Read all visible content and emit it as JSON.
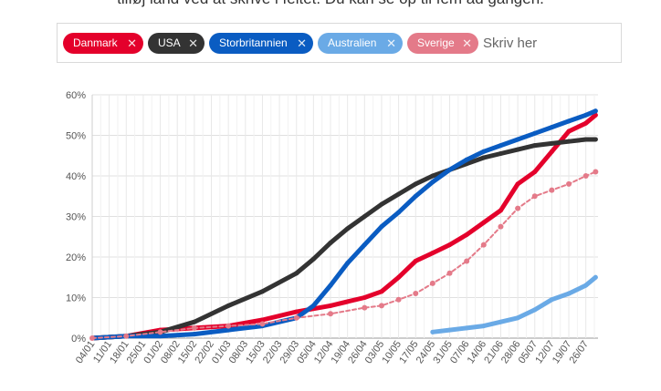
{
  "intro_text": "tilføj land ved at skrive i feltet. Du kan se op til fem ad gangen.",
  "selector": {
    "chips": [
      {
        "label": "Danmark",
        "color": "#e4002b"
      },
      {
        "label": "USA",
        "color": "#333333"
      },
      {
        "label": "Storbritannien",
        "color": "#0a5cc2"
      },
      {
        "label": "Australien",
        "color": "#6aaae6"
      },
      {
        "label": "Sverige",
        "color": "#e47a89"
      }
    ],
    "remove_glyph": "✕",
    "search_placeholder": "Skriv her"
  },
  "chart_data": {
    "type": "line",
    "ylim": [
      0,
      60
    ],
    "yticks": [
      "0%",
      "10%",
      "20%",
      "30%",
      "40%",
      "50%",
      "60%"
    ],
    "ytick_values": [
      0,
      10,
      20,
      30,
      40,
      50,
      60
    ],
    "xlim": [
      0,
      208
    ],
    "xticks": [
      "04/01",
      "11/01",
      "18/01",
      "25/01",
      "01/02",
      "08/02",
      "15/02",
      "22/02",
      "01/03",
      "08/03",
      "15/03",
      "22/03",
      "29/03",
      "05/04",
      "12/04",
      "19/04",
      "26/04",
      "03/05",
      "10/05",
      "17/05",
      "24/05",
      "31/05",
      "07/06",
      "14/06",
      "21/06",
      "28/06",
      "05/07",
      "12/07",
      "19/07",
      "26/07"
    ],
    "xtick_values": [
      0,
      7,
      14,
      21,
      28,
      35,
      42,
      49,
      56,
      63,
      70,
      77,
      84,
      91,
      98,
      105,
      112,
      119,
      126,
      133,
      140,
      147,
      154,
      161,
      168,
      175,
      182,
      189,
      196,
      203
    ],
    "x_unit": "days from 04/01",
    "grid": true,
    "series": [
      {
        "name": "Danmark",
        "color": "#e4002b",
        "x": [
          0,
          14,
          28,
          42,
          56,
          70,
          84,
          98,
          112,
          119,
          126,
          133,
          140,
          147,
          154,
          161,
          168,
          175,
          182,
          189,
          196,
          203,
          207
        ],
        "y": [
          0,
          0.5,
          2,
          2.5,
          3,
          4.5,
          6.5,
          8,
          10,
          11.5,
          15,
          19,
          21,
          23,
          25.5,
          28.5,
          31.5,
          38,
          41,
          46,
          51,
          53,
          55
        ]
      },
      {
        "name": "USA",
        "color": "#333333",
        "x": [
          0,
          14,
          28,
          42,
          56,
          70,
          84,
          91,
          98,
          105,
          112,
          119,
          126,
          133,
          140,
          147,
          154,
          161,
          168,
          175,
          182,
          189,
          196,
          203,
          207
        ],
        "y": [
          0,
          0.5,
          1.5,
          4,
          8,
          11.5,
          16,
          19.5,
          23.5,
          27,
          30,
          33,
          35.5,
          38,
          40,
          41.5,
          43,
          44.5,
          45.5,
          46.5,
          47.5,
          48,
          48.5,
          49,
          49
        ]
      },
      {
        "name": "Storbritannien",
        "color": "#0a5cc2",
        "x": [
          0,
          14,
          28,
          42,
          56,
          70,
          84,
          91,
          98,
          105,
          112,
          119,
          126,
          133,
          140,
          147,
          154,
          161,
          168,
          175,
          182,
          189,
          196,
          203,
          207
        ],
        "y": [
          0,
          0.5,
          0.5,
          1,
          2,
          3,
          5,
          8,
          13,
          18.5,
          23,
          27.5,
          31,
          35,
          38.5,
          41.5,
          44,
          46,
          47.5,
          49,
          50.5,
          52,
          53.5,
          55,
          56
        ]
      },
      {
        "name": "Australien",
        "color": "#6aaae6",
        "x": [
          140,
          147,
          154,
          161,
          168,
          175,
          182,
          189,
          196,
          203,
          207
        ],
        "y": [
          1.5,
          2,
          2.5,
          3,
          4,
          5,
          7,
          9.5,
          11,
          13,
          15
        ]
      },
      {
        "name": "Sverige",
        "color": "#e47a89",
        "x": [
          0,
          14,
          28,
          42,
          56,
          70,
          84,
          98,
          112,
          119,
          126,
          133,
          140,
          147,
          154,
          161,
          168,
          175,
          182,
          189,
          196,
          203,
          207
        ],
        "y": [
          0,
          0.5,
          1.5,
          2.5,
          3,
          3.5,
          5,
          6,
          7.5,
          8,
          9.5,
          11,
          13.5,
          16,
          19,
          23,
          27.5,
          32,
          35,
          36.5,
          38,
          40,
          41
        ]
      }
    ]
  }
}
